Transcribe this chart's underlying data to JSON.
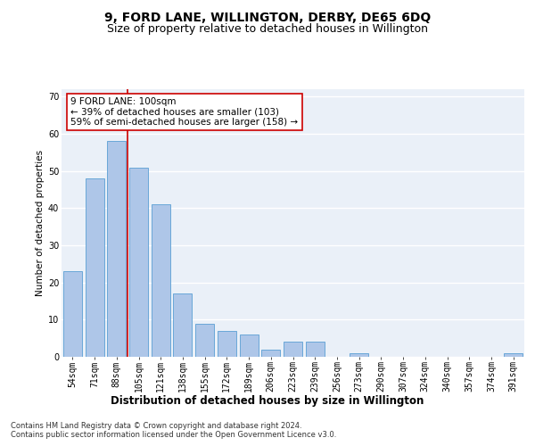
{
  "title": "9, FORD LANE, WILLINGTON, DERBY, DE65 6DQ",
  "subtitle": "Size of property relative to detached houses in Willington",
  "xlabel": "Distribution of detached houses by size in Willington",
  "ylabel": "Number of detached properties",
  "categories": [
    "54sqm",
    "71sqm",
    "88sqm",
    "105sqm",
    "121sqm",
    "138sqm",
    "155sqm",
    "172sqm",
    "189sqm",
    "206sqm",
    "223sqm",
    "239sqm",
    "256sqm",
    "273sqm",
    "290sqm",
    "307sqm",
    "324sqm",
    "340sqm",
    "357sqm",
    "374sqm",
    "391sqm"
  ],
  "values": [
    23,
    48,
    58,
    51,
    41,
    17,
    9,
    7,
    6,
    2,
    4,
    4,
    0,
    1,
    0,
    0,
    0,
    0,
    0,
    0,
    1
  ],
  "bar_color": "#aec6e8",
  "bar_edge_color": "#5a9fd4",
  "vline_color": "#cc0000",
  "vline_x": 2.5,
  "annotation_text": "9 FORD LANE: 100sqm\n← 39% of detached houses are smaller (103)\n59% of semi-detached houses are larger (158) →",
  "annotation_box_color": "white",
  "annotation_box_edge": "#cc0000",
  "ylim": [
    0,
    72
  ],
  "yticks": [
    0,
    10,
    20,
    30,
    40,
    50,
    60,
    70
  ],
  "bg_color": "#eaf0f8",
  "grid_color": "#ffffff",
  "footer": "Contains HM Land Registry data © Crown copyright and database right 2024.\nContains public sector information licensed under the Open Government Licence v3.0.",
  "title_fontsize": 10,
  "subtitle_fontsize": 9,
  "xlabel_fontsize": 8.5,
  "ylabel_fontsize": 7.5,
  "tick_fontsize": 7,
  "annotation_fontsize": 7.5,
  "footer_fontsize": 6
}
